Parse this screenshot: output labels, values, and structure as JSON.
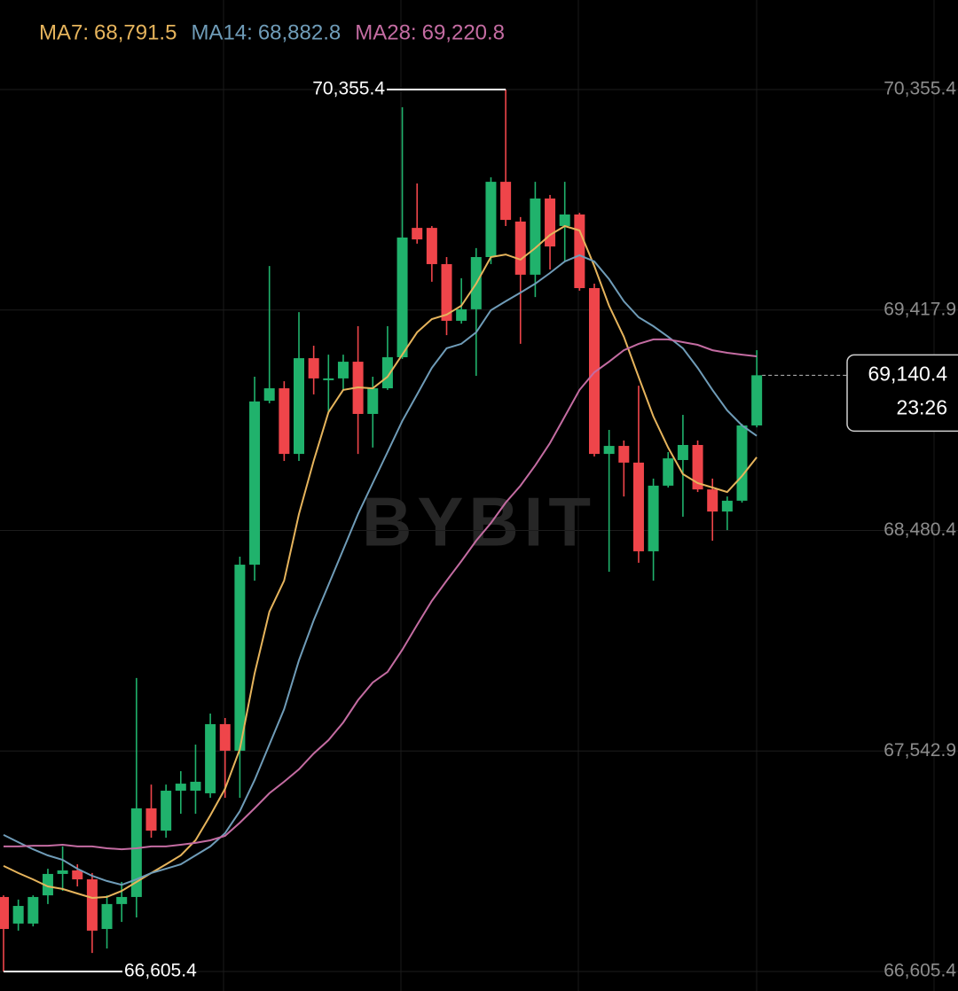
{
  "chart_data": {
    "type": "candlestick",
    "categories": [
      null,
      null,
      null,
      null,
      null,
      null,
      null,
      null,
      null,
      null,
      null,
      null,
      null,
      null,
      null,
      null,
      null,
      null,
      null,
      null,
      null,
      null,
      null,
      null,
      null,
      null,
      null,
      null,
      null,
      null,
      null,
      null,
      null,
      null,
      null,
      null,
      null,
      null,
      null,
      null,
      null,
      null,
      null,
      null,
      null,
      null,
      null,
      null,
      null,
      null,
      null,
      null
    ],
    "candles": {
      "up_color": "#20b26c",
      "down_color": "#ef454a",
      "open": [
        66922,
        66809,
        66809,
        66929,
        67020,
        67035,
        66997,
        66786,
        66892,
        66922,
        67299,
        67204,
        67374,
        67374,
        67363,
        67657,
        67544,
        68335,
        69032,
        69085,
        68806,
        69213,
        69123,
        69127,
        69198,
        68976,
        69085,
        69217,
        69767,
        69767,
        69613,
        69372,
        69421,
        69643,
        69963,
        69794,
        69568,
        69892,
        69775,
        69824,
        69511,
        68806,
        68840,
        68769,
        68392,
        68671,
        68780,
        68844,
        68655,
        68561,
        68607,
        68927
      ],
      "high": [
        66929,
        66911,
        66929,
        67042,
        67137,
        67061,
        67024,
        66929,
        66986,
        67853,
        67400,
        67400,
        67457,
        67570,
        67702,
        67683,
        68369,
        69134,
        69605,
        69115,
        69409,
        69266,
        69228,
        69228,
        69349,
        69134,
        69349,
        70280,
        69956,
        69775,
        69643,
        69553,
        69681,
        69982,
        70355.4,
        69813,
        69963,
        69907,
        69963,
        69831,
        69530,
        68908,
        68863,
        69096,
        68701,
        68814,
        68972,
        68863,
        68701,
        68625,
        68934,
        69247
      ],
      "low": [
        66605.4,
        66779,
        66797,
        66892,
        66948,
        66967,
        66684,
        66703,
        66816,
        66835,
        67174,
        67174,
        67276,
        67276,
        67344,
        67344,
        67344,
        68267,
        69021,
        68776,
        68776,
        69059,
        68983,
        69078,
        68806,
        68833,
        69078,
        69210,
        69700,
        69538,
        69311,
        69360,
        69138,
        69613,
        69775,
        69274,
        69473,
        69590,
        69624,
        69500,
        68795,
        68305,
        68625,
        68343,
        68267,
        68663,
        68539,
        68644,
        68437,
        68482,
        68599,
        68919
      ],
      "close": [
        66786,
        66884,
        66922,
        67020,
        67035,
        66997,
        66779,
        66892,
        66922,
        67299,
        67204,
        67374,
        67404,
        67412,
        67657,
        67544,
        68335,
        69029,
        69085,
        68806,
        69213,
        69127,
        69127,
        69198,
        68976,
        69085,
        69217,
        69726,
        69718,
        69613,
        69372,
        69421,
        69643,
        69963,
        69801,
        69568,
        69892,
        69688,
        69824,
        69511,
        68806,
        68840,
        68769,
        68392,
        68671,
        68787,
        68844,
        68655,
        68561,
        68607,
        68927,
        69140.4
      ]
    },
    "series": [
      {
        "name": "MA7:",
        "color": "#e6b45c",
        "current": {
          "value": 68791.5,
          "label": "68,791.5"
        },
        "values": [
          67054,
          67024,
          66997,
          66967,
          66956,
          66937,
          66918,
          66922,
          66948,
          66986,
          67024,
          67061,
          67099,
          67163,
          67269,
          67382,
          67551,
          67872,
          68135,
          68267,
          68550,
          68776,
          68983,
          69078,
          69089,
          69085,
          69134,
          69228,
          69323,
          69379,
          69398,
          69436,
          69530,
          69643,
          69654,
          69632,
          69681,
          69737,
          69775,
          69756,
          69605,
          69436,
          69304,
          69134,
          68965,
          68833,
          68720,
          68682,
          68663,
          68644,
          68712,
          68791.5
        ]
      },
      {
        "name": "MA14:",
        "color": "#6f9cb8",
        "current": {
          "value": 68882.8,
          "label": "68,882.8"
        },
        "values": [
          67186,
          67155,
          67125,
          67099,
          67080,
          67042,
          67012,
          66990,
          66974,
          66997,
          67024,
          67042,
          67061,
          67099,
          67137,
          67193,
          67287,
          67419,
          67570,
          67721,
          67928,
          68098,
          68249,
          68399,
          68550,
          68682,
          68814,
          68946,
          69059,
          69172,
          69255,
          69274,
          69323,
          69417,
          69455,
          69492,
          69530,
          69575,
          69624,
          69651,
          69624,
          69549,
          69455,
          69387,
          69349,
          69304,
          69255,
          69172,
          69078,
          68991,
          68927,
          68882.8
        ]
      },
      {
        "name": "MA28:",
        "color": "#c46ca2",
        "current": {
          "value": 69220.8,
          "label": "69,220.8"
        },
        "values": [
          67137,
          67137,
          67140,
          67140,
          67144,
          67137,
          67137,
          67129,
          67125,
          67129,
          67137,
          67137,
          67144,
          67152,
          67163,
          67182,
          67238,
          67299,
          67363,
          67412,
          67465,
          67532,
          67589,
          67664,
          67759,
          67834,
          67879,
          67973,
          68079,
          68181,
          68267,
          68350,
          68437,
          68512,
          68599,
          68671,
          68757,
          68852,
          68965,
          69078,
          69153,
          69198,
          69247,
          69274,
          69293,
          69293,
          69281,
          69270,
          69247,
          69236,
          69228,
          69220.8
        ]
      }
    ],
    "ylim": [
      66522.3,
      70736.0
    ],
    "yticks": [
      {
        "value": 66605.4,
        "label": "66,605.4"
      },
      {
        "value": 67542.9,
        "label": "67,542.9"
      },
      {
        "value": 68480.4,
        "label": "68,480.4"
      },
      {
        "value": 69417.9,
        "label": "69,417.9"
      },
      {
        "value": 70355.4,
        "label": "70,355.4"
      }
    ],
    "grid": true,
    "high_label": {
      "value": 70355.4,
      "label": "70,355.4"
    },
    "low_label": {
      "value": 66605.4,
      "label": "66,605.4"
    },
    "last_price": {
      "value": 69140.4,
      "label": "69,140.4"
    },
    "countdown": "23:26",
    "watermark": "BYBIT"
  }
}
